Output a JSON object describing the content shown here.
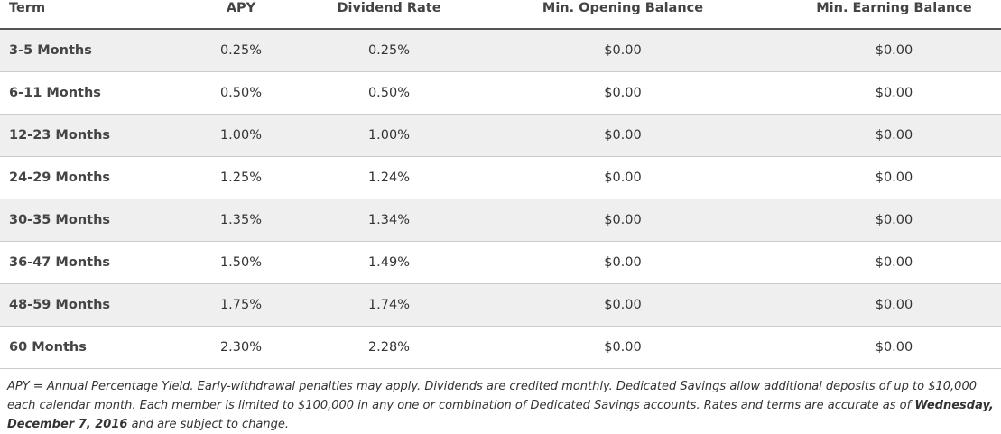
{
  "table": {
    "header": [
      "Term",
      "APY",
      "Dividend Rate",
      "Min. Opening Balance",
      "Min. Earning Balance"
    ],
    "rows": [
      [
        "3-5 Months",
        "0.25%",
        "0.25%",
        "$0.00",
        "$0.00"
      ],
      [
        "6-11 Months",
        "0.50%",
        "0.50%",
        "$0.00",
        "$0.00"
      ],
      [
        "12-23 Months",
        "1.00%",
        "1.00%",
        "$0.00",
        "$0.00"
      ],
      [
        "24-29 Months",
        "1.25%",
        "1.24%",
        "$0.00",
        "$0.00"
      ],
      [
        "30-35 Months",
        "1.35%",
        "1.34%",
        "$0.00",
        "$0.00"
      ],
      [
        "36-47 Months",
        "1.50%",
        "1.49%",
        "$0.00",
        "$0.00"
      ],
      [
        "48-59 Months",
        "1.75%",
        "1.74%",
        "$0.00",
        "$0.00"
      ],
      [
        "60 Months",
        "2.30%",
        "2.28%",
        "$0.00",
        "$0.00"
      ]
    ]
  },
  "note": {
    "before": "APY = Annual Percentage Yield. Early-withdrawal penalties may apply. Dividends are credited monthly. Dedicated Savings allow additional deposits of up to $10,000 each calendar month. Each member is limited to $100,000 in any one or combination of Dedicated Savings accounts. Rates and terms are accurate as of ",
    "emphasis": "Wednesday, December 7, 2016",
    "after": " and are subject to change."
  }
}
